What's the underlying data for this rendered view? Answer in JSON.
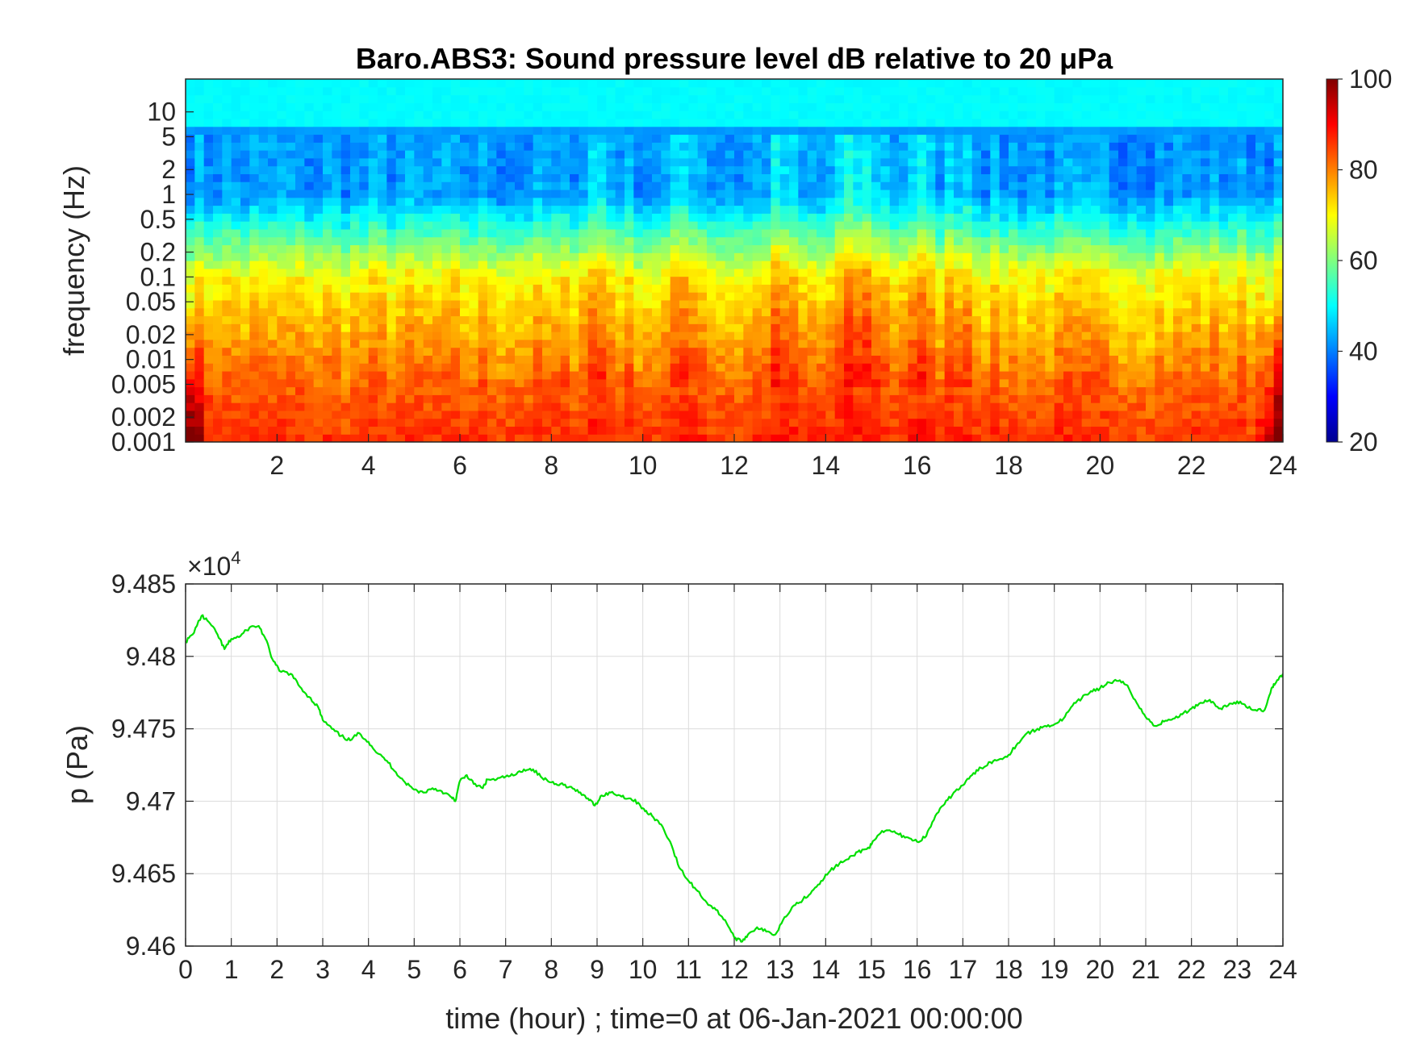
{
  "chart_data": [
    {
      "type": "heatmap",
      "title": "Baro.ABS3: Sound pressure level dB relative to 20 μPa",
      "ylabel": "frequency (Hz)",
      "xlabel": "",
      "x_range": [
        0,
        24
      ],
      "x_ticks": [
        2,
        4,
        6,
        8,
        10,
        12,
        14,
        16,
        18,
        20,
        22,
        24
      ],
      "y_scale": "log",
      "y_range": [
        0.001,
        25
      ],
      "y_ticks": [
        0.001,
        0.002,
        0.005,
        0.01,
        0.02,
        0.05,
        0.1,
        0.2,
        0.5,
        1,
        2,
        5,
        10
      ],
      "y_tick_labels": [
        "0.001",
        "0.002",
        "0.005",
        "0.01",
        "0.02",
        "0.05",
        "0.1",
        "0.2",
        "0.5",
        "1",
        "2",
        "5",
        "10"
      ],
      "colormap": "jet",
      "color_range": [
        20,
        100
      ],
      "colorbar_ticks": [
        20,
        40,
        60,
        80,
        100
      ],
      "description_levels": {
        "low_freq_0.001_0.005_dB": 82,
        "mid_freq_0.01_0.1_dB": 70,
        "high_freq_1_5_dB": 42,
        "top_freq_10_25_dB": 50
      },
      "active_hours": [
        9,
        11,
        13,
        14.5,
        15,
        16,
        17
      ]
    },
    {
      "type": "line",
      "title": "",
      "xlabel": "time (hour) ; time=0 at 06-Jan-2021 00:00:00",
      "ylabel": "p (Pa)",
      "y_multiplier_label": "×10",
      "y_multiplier_exp": "4",
      "xlim": [
        0,
        24
      ],
      "ylim": [
        94600,
        94850
      ],
      "x_ticks": [
        0,
        1,
        2,
        3,
        4,
        5,
        6,
        7,
        8,
        9,
        10,
        11,
        12,
        13,
        14,
        15,
        16,
        17,
        18,
        19,
        20,
        21,
        22,
        23,
        24
      ],
      "y_ticks": [
        94600,
        94650,
        94700,
        94750,
        94800,
        94850
      ],
      "y_tick_labels": [
        "9.46",
        "9.465",
        "9.47",
        "9.475",
        "9.48",
        "9.485"
      ],
      "grid": true,
      "line_color": "#00e000",
      "series": [
        {
          "x": [
            0,
            0.15,
            0.35,
            0.5,
            0.7,
            0.85,
            1.0,
            1.2,
            1.4,
            1.6,
            1.75,
            1.9,
            2.05,
            2.3,
            2.5,
            2.7,
            2.9,
            3.0,
            3.2,
            3.4,
            3.6,
            3.8,
            4.0,
            4.2,
            4.4,
            4.6,
            4.8,
            5.0,
            5.2,
            5.4,
            5.6,
            5.8,
            5.9,
            6.0,
            6.15,
            6.3,
            6.5,
            6.6,
            6.8,
            7.0,
            7.2,
            7.4,
            7.6,
            7.8,
            8.0,
            8.2,
            8.4,
            8.6,
            8.8,
            8.95,
            9.1,
            9.3,
            9.5,
            9.7,
            9.9,
            10.05,
            10.2,
            10.4,
            10.6,
            10.8,
            11.0,
            11.2,
            11.4,
            11.6,
            11.8,
            12.0,
            12.15,
            12.3,
            12.5,
            12.7,
            12.9,
            13.1,
            13.3,
            13.5,
            13.7,
            13.9,
            14.1,
            14.3,
            14.5,
            14.7,
            14.9,
            15.0,
            15.2,
            15.4,
            15.6,
            15.8,
            16.0,
            16.2,
            16.4,
            16.6,
            16.8,
            17.0,
            17.2,
            17.4,
            17.6,
            17.8,
            18.0,
            18.2,
            18.4,
            18.6,
            18.8,
            19.0,
            19.2,
            19.4,
            19.6,
            19.8,
            20.0,
            20.2,
            20.4,
            20.6,
            20.8,
            21.0,
            21.2,
            21.4,
            21.6,
            21.8,
            22.0,
            22.2,
            22.4,
            22.6,
            22.8,
            23.0,
            23.2,
            23.4,
            23.6,
            23.75,
            23.85,
            24.0
          ],
          "y": [
            94810,
            94815,
            94828,
            94824,
            94815,
            94805,
            94812,
            94814,
            94820,
            94821,
            94812,
            94798,
            94790,
            94788,
            94779,
            94772,
            94765,
            94756,
            94750,
            94745,
            94742,
            94747,
            94741,
            94733,
            94728,
            94720,
            94713,
            94708,
            94706,
            94709,
            94707,
            94703,
            94700,
            94714,
            94718,
            94712,
            94709,
            94715,
            94715,
            94717,
            94718,
            94722,
            94722,
            94716,
            94713,
            94712,
            94710,
            94706,
            94702,
            94697,
            94704,
            94706,
            94704,
            94702,
            94699,
            94693,
            94690,
            94684,
            94672,
            94654,
            94645,
            94638,
            94630,
            94625,
            94618,
            94606,
            94603,
            94608,
            94613,
            94610,
            94608,
            94620,
            94628,
            94632,
            94638,
            94645,
            94652,
            94657,
            94660,
            94665,
            94667,
            94670,
            94678,
            94680,
            94677,
            94675,
            94672,
            94676,
            94690,
            94698,
            94706,
            94711,
            94718,
            94723,
            94727,
            94729,
            94732,
            94740,
            94747,
            94749,
            94752,
            94753,
            94757,
            94766,
            94771,
            94776,
            94778,
            94782,
            94783,
            94780,
            94768,
            94758,
            94752,
            94755,
            94757,
            94760,
            94764,
            94768,
            94770,
            94764,
            94766,
            94769,
            94765,
            94763,
            94763,
            94778,
            94782,
            94788
          ]
        }
      ]
    }
  ]
}
